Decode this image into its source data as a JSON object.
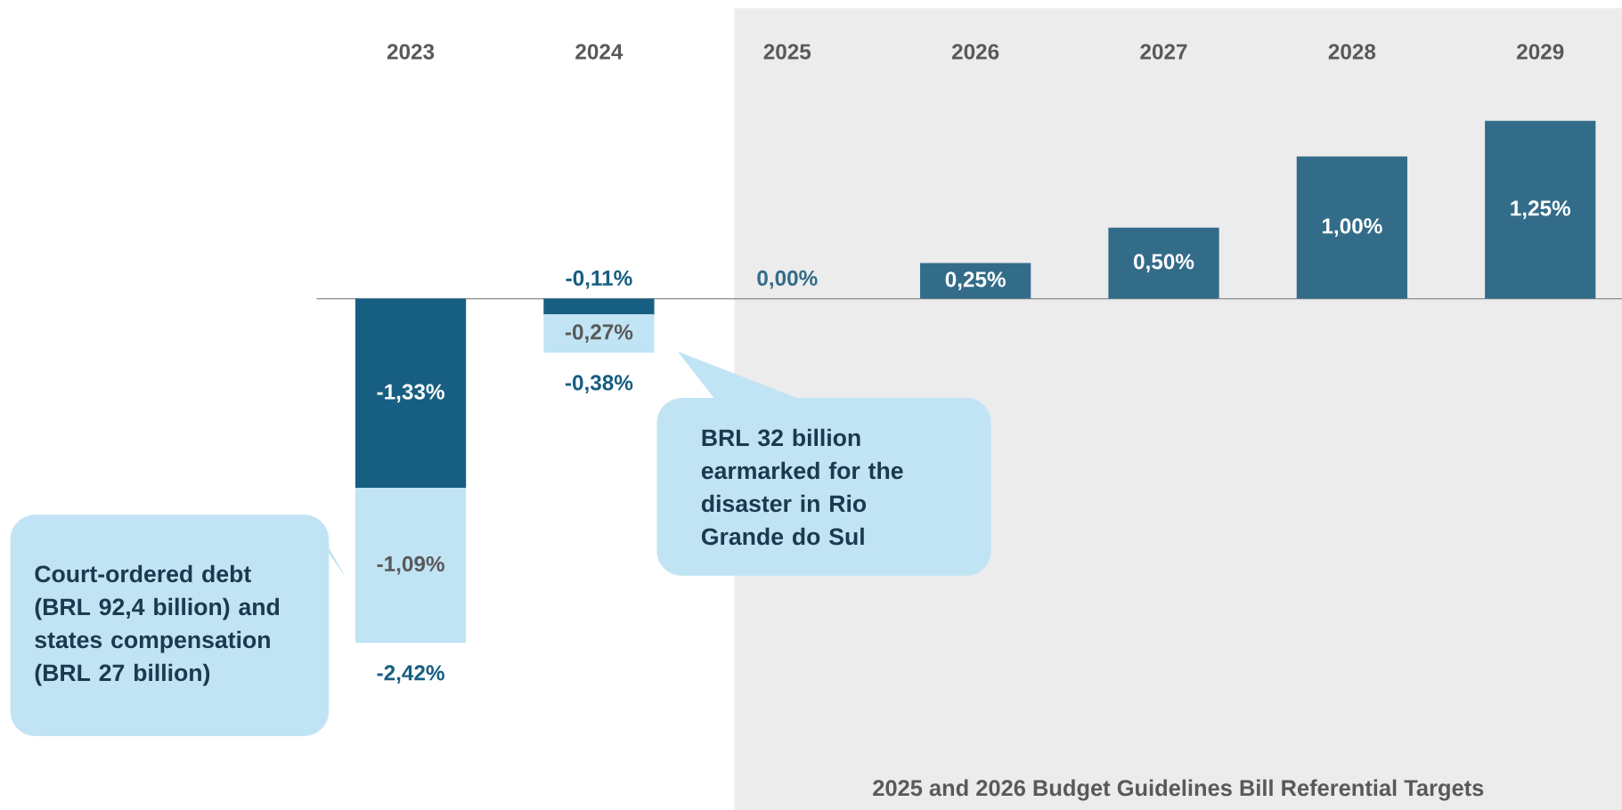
{
  "chart_data": {
    "type": "bar",
    "stacked": true,
    "categories": [
      "2023",
      "2024",
      "2025",
      "2026",
      "2027",
      "2028",
      "2029"
    ],
    "series": [
      {
        "colors": [
          "#175f82",
          "#175f82",
          "#336c89",
          "#336c89",
          "#336c89",
          "#336c89",
          "#336c89"
        ],
        "values": [
          -1.33,
          -0.11,
          0,
          0.25,
          0.5,
          1.0,
          1.25
        ],
        "value_labels": [
          "-1,33%",
          "-0,11%",
          "0,00%",
          "0,25%",
          "0,50%",
          "1,00%",
          "1,25%"
        ]
      },
      {
        "color": "#c1e4f5",
        "values": [
          -1.09,
          -0.27,
          null,
          null,
          null,
          null,
          null
        ],
        "value_labels": [
          "-1,09%",
          "-0,27%",
          null,
          null,
          null,
          null,
          null
        ]
      }
    ],
    "totals": [
      "-2,42%",
      "-0,38%",
      null,
      null,
      null,
      null,
      null
    ],
    "bands": [
      {
        "axis": "x",
        "from": "2025",
        "to": "2029",
        "label": "2025 and 2026  Budget Guidelines Bill Referential Targets",
        "color": "#ececec"
      }
    ],
    "annotations": [
      "Court-ordered debt (BRL 92,4 billion) and states compensation (BRL 27 billion)",
      "BRL 32 billion earmarked for the disaster in Rio Grande do Sul"
    ]
  }
}
